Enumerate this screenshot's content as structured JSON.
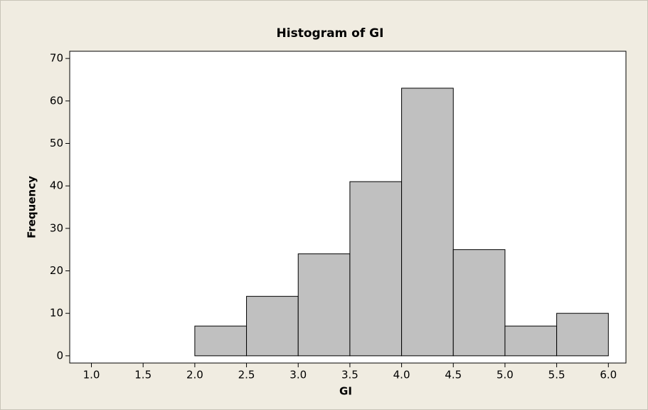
{
  "chart_data": {
    "type": "histogram",
    "title": "Histogram of GI",
    "x_label": "GI",
    "y_label": "Frequency",
    "bins": [
      1.0,
      1.5,
      2.0,
      2.5,
      3.0,
      3.5,
      4.0,
      4.5,
      5.0,
      5.5,
      6.0
    ],
    "counts": [
      0,
      0,
      7,
      14,
      24,
      41,
      63,
      25,
      7,
      10
    ],
    "color": "#c0c0c0",
    "xlim": [
      0.79,
      6.17
    ],
    "xticks": [
      {
        "value": 1,
        "label": "1.0"
      },
      1.5,
      {
        "value": 2,
        "label": "2.0"
      },
      2.5,
      {
        "value": 3,
        "label": "3.0"
      },
      3.5,
      {
        "value": 4,
        "label": "4.0"
      },
      4.5,
      {
        "value": 5,
        "label": "5.0"
      },
      5.5,
      {
        "value": 6,
        "label": "6.0"
      }
    ],
    "ylim": [
      -1.7,
      71.7
    ],
    "yticks": [
      0,
      10,
      20,
      30,
      40,
      50,
      60,
      70
    ],
    "grid": false
  }
}
